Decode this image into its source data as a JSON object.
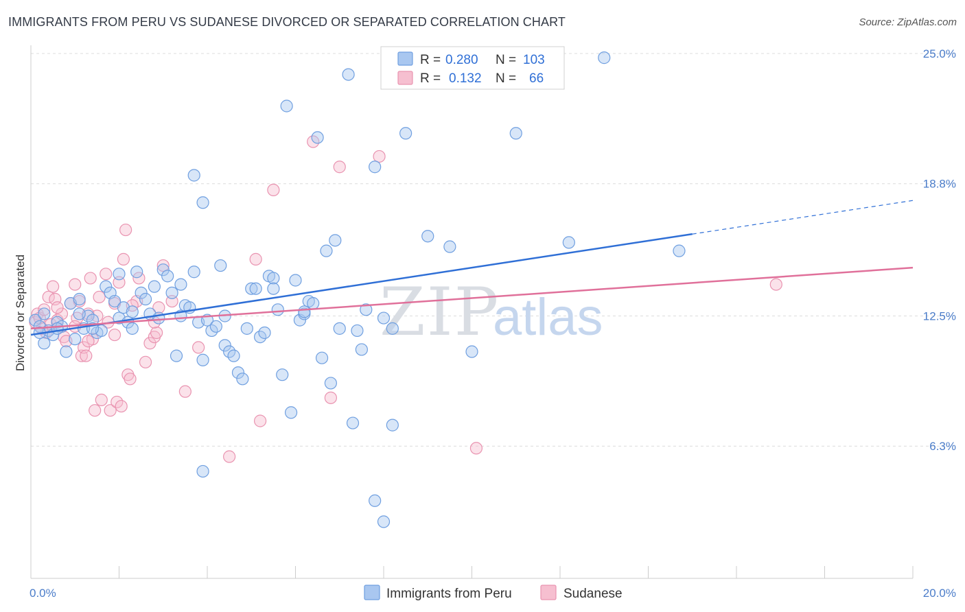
{
  "title": "IMMIGRANTS FROM PERU VS SUDANESE DIVORCED OR SEPARATED CORRELATION CHART",
  "source": "Source: ZipAtlas.com",
  "watermark": {
    "zip": "ZIP",
    "atlas": "atlas"
  },
  "legend": {
    "r_label": "R =",
    "n_label": "N =",
    "series": [
      {
        "r": "0.280",
        "n": "103"
      },
      {
        "r": "0.132",
        "n": "66"
      }
    ]
  },
  "colors": {
    "peru_fill": "#a9c7f0",
    "peru_stroke": "#6f9fe0",
    "peru_line": "#2f6fd6",
    "sudanese_fill": "#f6bfd0",
    "sudanese_stroke": "#e993b0",
    "sudanese_line": "#e0709a",
    "tick": "#4a7cc9",
    "grid": "#dcdcdc"
  },
  "chart_data": {
    "type": "scatter",
    "title": "IMMIGRANTS FROM PERU VS SUDANESE DIVORCED OR SEPARATED CORRELATION CHART",
    "xlabel": "",
    "ylabel": "Divorced or Separated",
    "xlim": [
      0,
      20
    ],
    "ylim": [
      0,
      25
    ],
    "x_tick_labels": [
      "0.0%",
      "20.0%"
    ],
    "y_ticks": [
      6.3,
      12.5,
      18.8,
      25.0
    ],
    "y_tick_labels": [
      "6.3%",
      "12.5%",
      "18.8%",
      "25.0%"
    ],
    "grid": "horizontal dashed",
    "legend_position": "top-center",
    "series": [
      {
        "name": "Immigrants from Peru",
        "r": 0.28,
        "n": 103,
        "trend": {
          "x0": 0,
          "y0": 11.6,
          "x1": 15.0,
          "y1": 16.4,
          "dashed_to_x": 20,
          "dashed_to_y": 18.0
        },
        "points": [
          [
            0.1,
            12.3
          ],
          [
            0.2,
            12.0
          ],
          [
            0.3,
            11.2
          ],
          [
            0.4,
            11.8
          ],
          [
            0.5,
            11.6
          ],
          [
            0.6,
            12.2
          ],
          [
            0.7,
            12.0
          ],
          [
            0.8,
            10.8
          ],
          [
            0.9,
            13.1
          ],
          [
            1.0,
            11.4
          ],
          [
            1.1,
            13.3
          ],
          [
            1.2,
            11.9
          ],
          [
            1.3,
            12.5
          ],
          [
            1.4,
            12.3
          ],
          [
            1.5,
            11.7
          ],
          [
            1.6,
            11.8
          ],
          [
            1.7,
            13.9
          ],
          [
            1.8,
            13.6
          ],
          [
            1.9,
            13.2
          ],
          [
            2.0,
            12.4
          ],
          [
            2.1,
            12.9
          ],
          [
            2.2,
            12.2
          ],
          [
            2.3,
            11.9
          ],
          [
            2.4,
            14.6
          ],
          [
            2.5,
            13.6
          ],
          [
            2.6,
            13.3
          ],
          [
            2.7,
            12.6
          ],
          [
            2.8,
            13.9
          ],
          [
            2.9,
            12.4
          ],
          [
            3.0,
            14.7
          ],
          [
            3.1,
            14.4
          ],
          [
            3.2,
            13.6
          ],
          [
            3.3,
            10.6
          ],
          [
            3.4,
            12.5
          ],
          [
            3.5,
            13.0
          ],
          [
            3.6,
            12.9
          ],
          [
            3.7,
            14.6
          ],
          [
            3.8,
            12.2
          ],
          [
            3.9,
            10.4
          ],
          [
            4.0,
            12.3
          ],
          [
            4.1,
            11.8
          ],
          [
            4.2,
            12.0
          ],
          [
            4.3,
            14.9
          ],
          [
            4.4,
            11.1
          ],
          [
            4.5,
            10.8
          ],
          [
            4.6,
            10.6
          ],
          [
            4.7,
            9.8
          ],
          [
            4.8,
            9.5
          ],
          [
            4.9,
            11.9
          ],
          [
            5.0,
            13.8
          ],
          [
            5.1,
            13.8
          ],
          [
            5.2,
            11.5
          ],
          [
            5.3,
            11.7
          ],
          [
            5.4,
            14.4
          ],
          [
            5.5,
            14.3
          ],
          [
            5.6,
            12.8
          ],
          [
            5.7,
            9.7
          ],
          [
            5.8,
            22.5
          ],
          [
            5.9,
            7.9
          ],
          [
            6.0,
            14.2
          ],
          [
            6.1,
            12.3
          ],
          [
            6.2,
            12.6
          ],
          [
            6.3,
            13.2
          ],
          [
            6.4,
            13.1
          ],
          [
            6.5,
            21.0
          ],
          [
            6.6,
            10.5
          ],
          [
            6.7,
            15.6
          ],
          [
            6.8,
            9.3
          ],
          [
            6.9,
            16.1
          ],
          [
            7.0,
            11.9
          ],
          [
            7.2,
            24.0
          ],
          [
            7.3,
            7.4
          ],
          [
            7.4,
            11.8
          ],
          [
            7.5,
            10.9
          ],
          [
            7.6,
            12.8
          ],
          [
            7.8,
            19.6
          ],
          [
            8.0,
            12.4
          ],
          [
            8.2,
            11.9
          ],
          [
            8.5,
            21.2
          ],
          [
            9.0,
            16.3
          ],
          [
            9.5,
            15.8
          ],
          [
            10.0,
            10.8
          ],
          [
            11.0,
            21.2
          ],
          [
            12.2,
            16.0
          ],
          [
            13.0,
            24.8
          ],
          [
            14.7,
            15.6
          ],
          [
            7.8,
            3.7
          ],
          [
            8.2,
            7.3
          ],
          [
            6.2,
            12.7
          ],
          [
            3.9,
            5.1
          ],
          [
            8.0,
            2.7
          ],
          [
            3.7,
            19.2
          ],
          [
            3.9,
            17.9
          ],
          [
            0.3,
            12.6
          ],
          [
            0.2,
            11.7
          ],
          [
            0.6,
            11.9
          ],
          [
            1.1,
            12.6
          ],
          [
            1.4,
            11.9
          ],
          [
            2.3,
            12.7
          ],
          [
            4.4,
            12.5
          ],
          [
            5.5,
            13.8
          ],
          [
            3.4,
            14.0
          ],
          [
            2.0,
            14.5
          ]
        ]
      },
      {
        "name": "Sudanese",
        "r": 0.132,
        "n": 66,
        "trend": {
          "x0": 0,
          "y0": 11.9,
          "x1": 20,
          "y1": 14.8
        },
        "points": [
          [
            0.1,
            12.2
          ],
          [
            0.15,
            12.6
          ],
          [
            0.2,
            12.4
          ],
          [
            0.3,
            12.8
          ],
          [
            0.35,
            11.7
          ],
          [
            0.4,
            13.4
          ],
          [
            0.45,
            12.1
          ],
          [
            0.5,
            13.9
          ],
          [
            0.55,
            13.3
          ],
          [
            0.6,
            12.3
          ],
          [
            0.7,
            12.6
          ],
          [
            0.75,
            11.5
          ],
          [
            0.8,
            11.3
          ],
          [
            0.9,
            13.1
          ],
          [
            1.0,
            14.0
          ],
          [
            1.05,
            12.4
          ],
          [
            1.1,
            13.2
          ],
          [
            1.15,
            10.6
          ],
          [
            1.2,
            11.0
          ],
          [
            1.25,
            10.6
          ],
          [
            1.3,
            12.6
          ],
          [
            1.35,
            14.3
          ],
          [
            1.4,
            11.4
          ],
          [
            1.45,
            8.0
          ],
          [
            1.5,
            12.5
          ],
          [
            1.55,
            13.4
          ],
          [
            1.6,
            8.5
          ],
          [
            1.7,
            14.5
          ],
          [
            1.75,
            12.2
          ],
          [
            1.8,
            8.0
          ],
          [
            1.9,
            13.1
          ],
          [
            1.95,
            8.4
          ],
          [
            2.0,
            14.1
          ],
          [
            2.05,
            8.2
          ],
          [
            2.1,
            15.2
          ],
          [
            2.15,
            16.6
          ],
          [
            2.2,
            9.7
          ],
          [
            2.25,
            9.5
          ],
          [
            2.4,
            13.2
          ],
          [
            2.45,
            14.3
          ],
          [
            2.6,
            10.3
          ],
          [
            2.7,
            11.2
          ],
          [
            2.8,
            11.5
          ],
          [
            2.85,
            11.7
          ],
          [
            2.9,
            12.9
          ],
          [
            3.0,
            14.9
          ],
          [
            3.2,
            13.2
          ],
          [
            3.5,
            8.9
          ],
          [
            3.8,
            11.0
          ],
          [
            4.5,
            5.8
          ],
          [
            5.1,
            15.2
          ],
          [
            5.2,
            7.5
          ],
          [
            5.5,
            18.5
          ],
          [
            6.4,
            20.8
          ],
          [
            6.8,
            8.6
          ],
          [
            7.0,
            19.6
          ],
          [
            7.9,
            20.1
          ],
          [
            10.1,
            6.2
          ],
          [
            16.9,
            14.0
          ],
          [
            2.3,
            13.0
          ],
          [
            1.0,
            12.0
          ],
          [
            0.6,
            12.9
          ],
          [
            1.9,
            11.6
          ],
          [
            2.8,
            12.2
          ],
          [
            0.25,
            11.9
          ],
          [
            1.3,
            11.3
          ]
        ]
      }
    ]
  }
}
